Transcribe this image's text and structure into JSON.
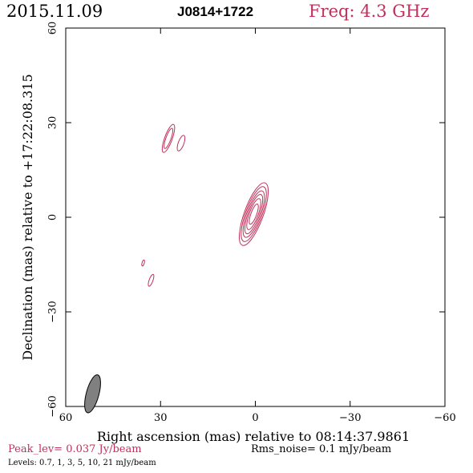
{
  "header": {
    "date": "2015.11.09",
    "source": "J0814+1722",
    "freq": "Freq: 4.3 GHz"
  },
  "footer": {
    "peak": "Peak_lev=  0.037 Jy/beam",
    "rms": "Rms_noise=  0.1 mJy/beam",
    "levels": "Levels: 0.7,   1,   3,   5,  10,  21 mJy/beam"
  },
  "colors": {
    "accent": "#c0305a",
    "axis": "#000000",
    "beam_fill": "#808080"
  },
  "chart_data": {
    "type": "contour",
    "xlabel": "Right ascension (mas) relative to 08:14:37.9861",
    "ylabel": "Declination (mas) relative to +17:22:08.315",
    "xlim": [
      60,
      -60
    ],
    "ylim": [
      -60,
      60
    ],
    "xticks": [
      60,
      30,
      0,
      -30,
      -60
    ],
    "yticks": [
      -60,
      -30,
      0,
      30,
      60
    ],
    "xtick_labels": [
      "60",
      "30",
      "0",
      "−30",
      "−60"
    ],
    "ytick_labels": [
      "−60",
      "−30",
      "0",
      "30",
      "60"
    ],
    "levels_mjy": [
      0.7,
      1,
      3,
      5,
      10,
      21
    ],
    "peak_jy_per_beam": 0.037,
    "rms_mjy_per_beam": 0.1,
    "components": [
      {
        "x": 0.5,
        "y": 1.0,
        "a": [
          10.5,
          9.2,
          7.8,
          6.6,
          5.2,
          3.4
        ],
        "b": [
          3.0,
          2.6,
          2.2,
          1.8,
          1.4,
          0.9
        ],
        "pa": 20
      },
      {
        "x": 27.5,
        "y": 25.0,
        "a": [
          4.7,
          3.4
        ],
        "b": [
          1.2,
          0.8
        ],
        "pa": 20
      },
      {
        "x": 23.5,
        "y": 23.5,
        "a": [
          2.6
        ],
        "b": [
          0.9
        ],
        "pa": 20
      },
      {
        "x": 33.0,
        "y": -20.0,
        "a": [
          2.0
        ],
        "b": [
          0.6
        ],
        "pa": 20
      },
      {
        "x": 35.5,
        "y": -14.5,
        "a": [
          1.0
        ],
        "b": [
          0.35
        ],
        "pa": 15
      }
    ],
    "beam": {
      "x": 51.5,
      "y": -56.0,
      "major": 6.2,
      "minor": 2.0,
      "pa": 15
    }
  }
}
